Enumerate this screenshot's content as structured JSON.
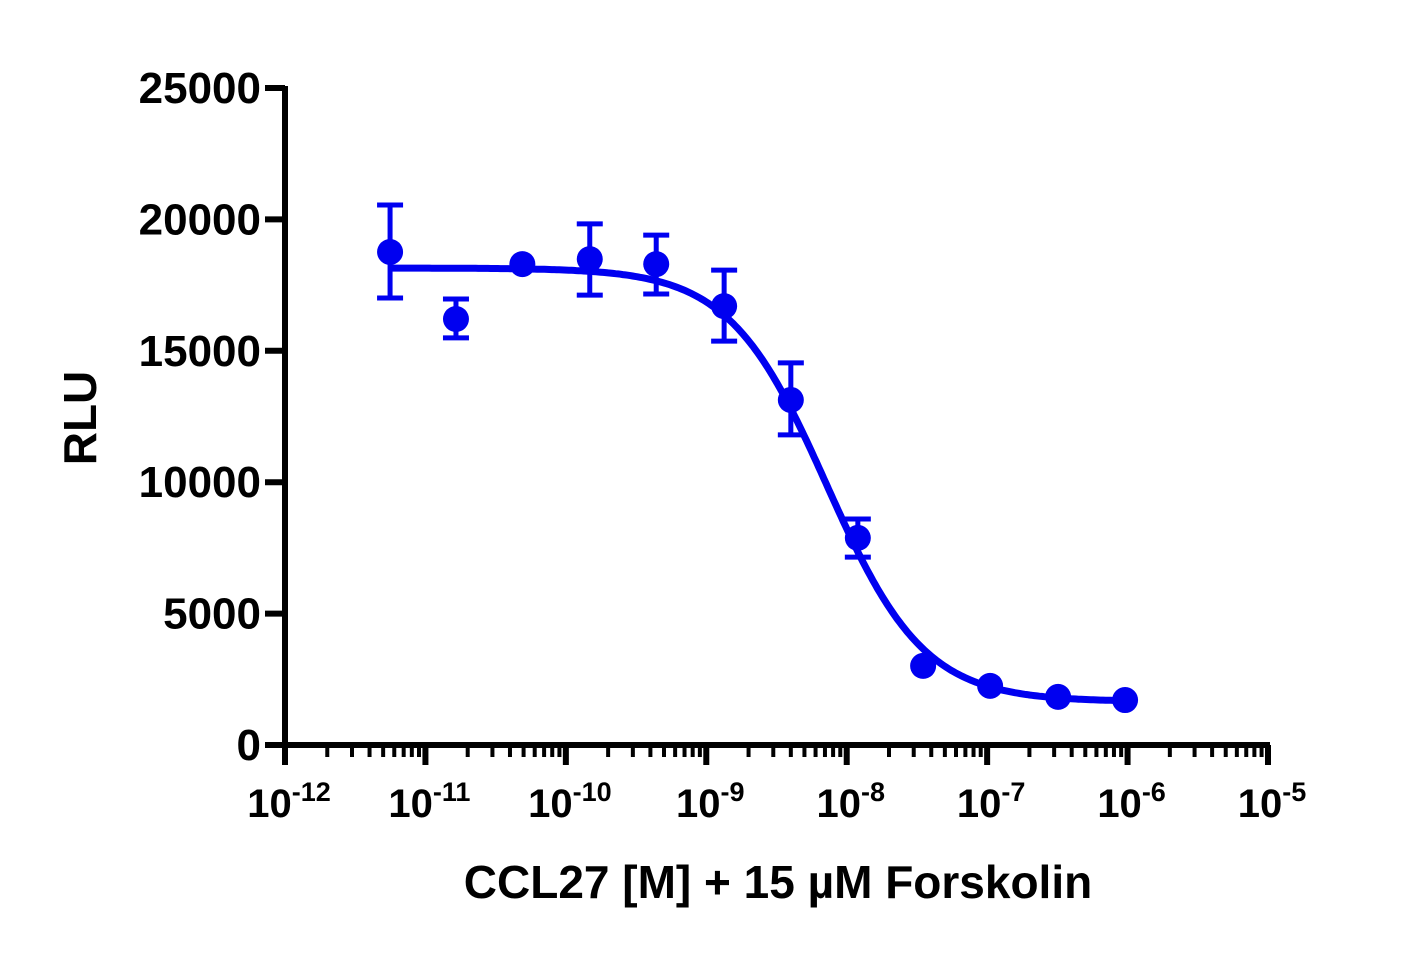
{
  "chart_data": {
    "type": "scatter",
    "title": "",
    "xlabel": "CCL27 [M] + 15 µM Forskolin",
    "ylabel": "RLU",
    "x_scale": "log",
    "xlim": [
      1e-12,
      1e-05
    ],
    "ylim": [
      0,
      25000
    ],
    "grid": false,
    "legend": "none",
    "color": "#0000f0",
    "y_ticks": [
      0,
      5000,
      10000,
      15000,
      20000,
      25000
    ],
    "y_tick_labels": [
      "0",
      "5000",
      "10000",
      "15000",
      "20000",
      "25000"
    ],
    "x_ticks": [
      1e-12,
      1e-11,
      1e-10,
      1e-09,
      1e-08,
      1e-07,
      1e-06,
      1e-05
    ],
    "x_tick_labels": [
      {
        "base": "10",
        "exp": "-12"
      },
      {
        "base": "10",
        "exp": "-11"
      },
      {
        "base": "10",
        "exp": "-10"
      },
      {
        "base": "10",
        "exp": "-9"
      },
      {
        "base": "10",
        "exp": "-8"
      },
      {
        "base": "10",
        "exp": "-7"
      },
      {
        "base": "10",
        "exp": "-6"
      },
      {
        "base": "10",
        "exp": "-5"
      }
    ],
    "points": [
      {
        "x": 5.6e-12,
        "y": 18760,
        "err_low": 17010,
        "err_high": 20550
      },
      {
        "x": 1.65e-11,
        "y": 16210,
        "err_low": 15490,
        "err_high": 16970
      },
      {
        "x": 4.9e-11,
        "y": 18300,
        "err_low": null,
        "err_high": null
      },
      {
        "x": 1.48e-10,
        "y": 18490,
        "err_low": 17120,
        "err_high": 19830
      },
      {
        "x": 4.4e-10,
        "y": 18300,
        "err_low": 17160,
        "err_high": 19400
      },
      {
        "x": 1.34e-09,
        "y": 16700,
        "err_low": 15370,
        "err_high": 18070
      },
      {
        "x": 4e-09,
        "y": 13130,
        "err_low": 11800,
        "err_high": 14540
      },
      {
        "x": 1.2e-08,
        "y": 7880,
        "err_low": 7150,
        "err_high": 8600
      },
      {
        "x": 3.5e-08,
        "y": 3010,
        "err_low": null,
        "err_high": null
      },
      {
        "x": 1.05e-07,
        "y": 2250,
        "err_low": null,
        "err_high": null
      },
      {
        "x": 3.2e-07,
        "y": 1830,
        "err_low": null,
        "err_high": null
      },
      {
        "x": 9.6e-07,
        "y": 1710,
        "err_low": null,
        "err_high": null
      }
    ],
    "fit_curve": {
      "model": "four-parameter logistic",
      "top": 18150,
      "bottom": 1650,
      "ic50": 7.2e-09,
      "hill_slope": 1.25,
      "x_range": [
        5.6e-12,
        9.6e-07
      ]
    }
  }
}
